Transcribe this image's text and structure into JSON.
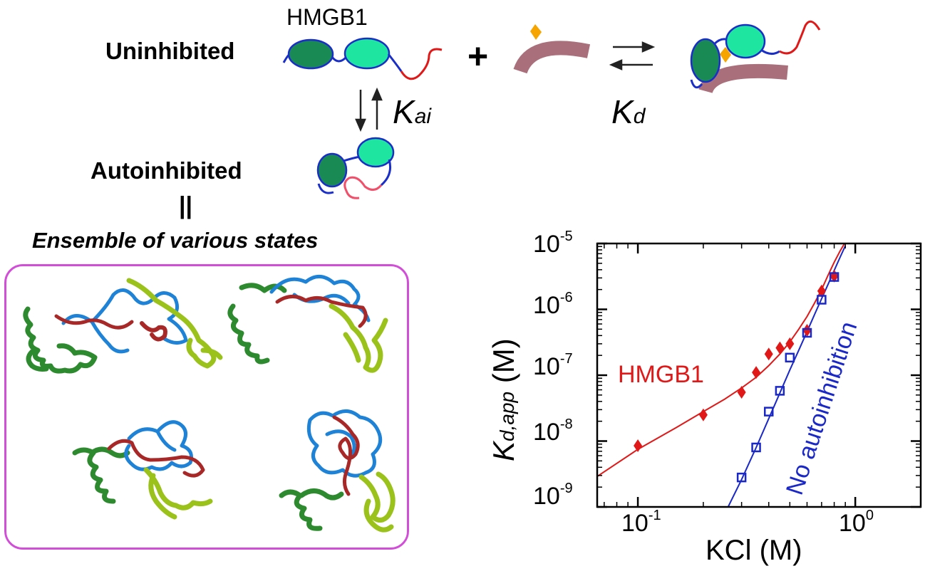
{
  "scheme": {
    "protein_label": "HMGB1",
    "uninhibited_label": "Uninhibited",
    "autoinhibited_label": "Autoinhibited",
    "equals_symbol": "||",
    "ensemble_label": "Ensemble of various states",
    "plus_symbol": "+",
    "k_ai": {
      "main": "K",
      "sub": "ai"
    },
    "k_d": {
      "main": "K",
      "sub": "d"
    },
    "colors": {
      "box_a": "#1a8a55",
      "box_b": "#1ee6a0",
      "linker": "#1a2ec8",
      "tail": "#e01818",
      "tail_inhibited": "#f0506a",
      "dna": "#a9707c",
      "lesion": "#f5a400",
      "ensemble_border": "#d24dd8",
      "structure_green": "#2e8a2e",
      "structure_lime": "#9ac21a",
      "structure_blue": "#1e82d6",
      "structure_red": "#a82828"
    }
  },
  "chart_data": {
    "type": "scatter",
    "x_scale": "log",
    "y_scale": "log",
    "xlim": [
      0.065,
      2.0
    ],
    "ylim": [
      1e-09,
      1e-05
    ],
    "xlabel": "KCl (M)",
    "ylabel": {
      "main": "K",
      "sub": "d,app",
      "unit": " (M)"
    },
    "x_ticks": [
      {
        "base": "10",
        "exp": "-1",
        "value": 0.1
      },
      {
        "base": "10",
        "exp": "0",
        "value": 1.0
      }
    ],
    "y_ticks": [
      {
        "base": "10",
        "exp": "-5",
        "value": 1e-05
      },
      {
        "base": "10",
        "exp": "-6",
        "value": 1e-06
      },
      {
        "base": "10",
        "exp": "-7",
        "value": 1e-07
      },
      {
        "base": "10",
        "exp": "-8",
        "value": 1e-08
      },
      {
        "base": "10",
        "exp": "-9",
        "value": 1e-09
      }
    ],
    "series": [
      {
        "name": "HMGB1",
        "color": "#e01818",
        "marker": "diamond",
        "x": [
          0.1,
          0.2,
          0.3,
          0.35,
          0.4,
          0.45,
          0.5,
          0.6,
          0.7,
          0.8
        ],
        "y": [
          8.5e-09,
          2.5e-08,
          5.5e-08,
          1.1e-07,
          2.1e-07,
          2.6e-07,
          3e-07,
          4.8e-07,
          1.9e-06,
          3.2e-06
        ],
        "fit_x": [
          0.065,
          0.1,
          0.15,
          0.2,
          0.25,
          0.3,
          0.35,
          0.4,
          0.45,
          0.5,
          0.55,
          0.6,
          0.65,
          0.7,
          0.75,
          0.8,
          0.85,
          0.9
        ],
        "fit_y": [
          2.9e-09,
          7.5e-09,
          1.6e-08,
          2.8e-08,
          4.3e-08,
          6.4e-08,
          9.3e-08,
          1.4e-07,
          2.1e-07,
          3.2e-07,
          5e-07,
          7.8e-07,
          1.25e-06,
          2e-06,
          3.3e-06,
          5.2e-06,
          7.6e-06,
          1.05e-05
        ]
      },
      {
        "name": "No autoinhibition",
        "color": "#1a28c8",
        "marker": "open-square",
        "x": [
          0.3,
          0.35,
          0.4,
          0.45,
          0.5,
          0.6,
          0.7,
          0.8
        ],
        "y": [
          2.8e-09,
          8e-09,
          2.8e-08,
          5.8e-08,
          1.85e-07,
          4.4e-07,
          1.4e-06,
          3.1e-06
        ],
        "fit_x": [
          0.26,
          0.3,
          0.35,
          0.4,
          0.45,
          0.5,
          0.55,
          0.6,
          0.65,
          0.7,
          0.75,
          0.8,
          0.85,
          0.9
        ],
        "fit_y": [
          1e-09,
          2.6e-09,
          8e-09,
          2.2e-08,
          5.4e-08,
          1.2e-07,
          2.4e-07,
          4.6e-07,
          8.4e-07,
          1.45e-06,
          2.4e-06,
          3.9e-06,
          6.1e-06,
          9.2e-06
        ]
      }
    ],
    "annotations": [
      {
        "text": "HMGB1",
        "color": "#e01818"
      },
      {
        "text": "No autoinhibition",
        "color": "#1a28c8"
      }
    ]
  }
}
